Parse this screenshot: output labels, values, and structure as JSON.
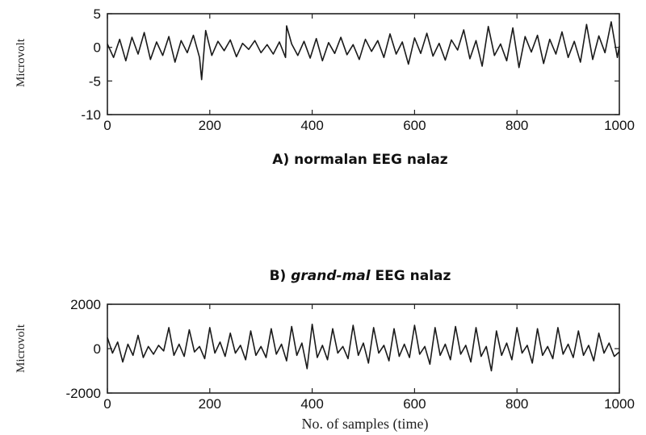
{
  "chart_data": [
    {
      "type": "line",
      "title": "",
      "caption": "A) normalan EEG nalaz",
      "xlabel": "",
      "ylabel": "Microvolt",
      "xlim": [
        0,
        1000
      ],
      "ylim": [
        -10,
        5
      ],
      "xticks": [
        0,
        200,
        400,
        600,
        800,
        1000
      ],
      "yticks": [
        5,
        0,
        -5,
        -10
      ],
      "grid": false,
      "series": [
        {
          "x": [
            0,
            12,
            24,
            36,
            48,
            60,
            72,
            84,
            96,
            108,
            120,
            132,
            144,
            156,
            168,
            180,
            184,
            192,
            204,
            216,
            228,
            240,
            252,
            264,
            276,
            288,
            300,
            312,
            324,
            336,
            348,
            350,
            360,
            372,
            384,
            396,
            408,
            420,
            432,
            444,
            456,
            468,
            480,
            492,
            504,
            516,
            528,
            540,
            552,
            564,
            576,
            588,
            600,
            612,
            624,
            636,
            648,
            660,
            672,
            684,
            696,
            708,
            720,
            732,
            744,
            756,
            768,
            780,
            792,
            804,
            816,
            828,
            840,
            852,
            864,
            876,
            888,
            900,
            912,
            924,
            936,
            948,
            960,
            972,
            984,
            996,
            1000
          ],
          "values": [
            0.5,
            -1.5,
            1.2,
            -2.0,
            1.5,
            -1.0,
            2.2,
            -1.8,
            0.8,
            -1.2,
            1.6,
            -2.2,
            1.0,
            -0.8,
            1.8,
            -1.5,
            -4.8,
            2.5,
            -1.2,
            0.9,
            -0.5,
            1.1,
            -1.4,
            0.6,
            -0.3,
            1.0,
            -0.8,
            0.4,
            -1.0,
            0.8,
            -1.5,
            3.2,
            0.5,
            -1.2,
            0.9,
            -1.6,
            1.3,
            -2.0,
            0.7,
            -0.9,
            1.5,
            -1.1,
            0.4,
            -1.8,
            1.2,
            -0.6,
            1.0,
            -1.5,
            2.0,
            -1.0,
            0.8,
            -2.5,
            1.4,
            -0.9,
            2.1,
            -1.3,
            0.6,
            -1.9,
            1.1,
            -0.4,
            2.6,
            -1.7,
            1.0,
            -2.8,
            3.1,
            -1.2,
            0.5,
            -2.0,
            2.9,
            -3.0,
            1.6,
            -0.7,
            1.8,
            -2.4,
            1.2,
            -1.0,
            2.3,
            -1.5,
            0.9,
            -2.2,
            3.4,
            -1.8,
            1.7,
            -0.8,
            3.8,
            -1.5,
            0.2
          ]
        }
      ]
    },
    {
      "type": "line",
      "title": "",
      "caption": {
        "prefix": "B) ",
        "italic": "grand-mal",
        "suffix": " EEG nalaz"
      },
      "xlabel": "No. of samples (time)",
      "ylabel": "Microvolt",
      "xlim": [
        0,
        1000
      ],
      "ylim": [
        -2000,
        2000
      ],
      "xticks": [
        0,
        200,
        400,
        600,
        800,
        1000
      ],
      "yticks": [
        2000,
        0,
        -2000
      ],
      "grid": false,
      "series": [
        {
          "x": [
            0,
            10,
            20,
            30,
            40,
            50,
            60,
            70,
            80,
            90,
            100,
            110,
            120,
            130,
            140,
            150,
            160,
            170,
            180,
            190,
            200,
            210,
            220,
            230,
            240,
            250,
            260,
            270,
            280,
            290,
            300,
            310,
            320,
            330,
            340,
            350,
            360,
            370,
            380,
            390,
            400,
            410,
            420,
            430,
            440,
            450,
            460,
            470,
            480,
            490,
            500,
            510,
            520,
            530,
            540,
            550,
            560,
            570,
            580,
            590,
            600,
            610,
            620,
            630,
            640,
            650,
            660,
            670,
            680,
            690,
            700,
            710,
            720,
            730,
            740,
            750,
            760,
            770,
            780,
            790,
            800,
            810,
            820,
            830,
            840,
            850,
            860,
            870,
            880,
            890,
            900,
            910,
            920,
            930,
            940,
            950,
            960,
            970,
            980,
            990,
            1000
          ],
          "values": [
            500,
            -200,
            300,
            -600,
            200,
            -300,
            600,
            -400,
            100,
            -250,
            150,
            -100,
            950,
            -300,
            200,
            -350,
            850,
            -150,
            100,
            -450,
            950,
            -200,
            300,
            -350,
            700,
            -200,
            150,
            -500,
            800,
            -300,
            100,
            -400,
            900,
            -250,
            200,
            -550,
            1000,
            -300,
            250,
            -900,
            1100,
            -400,
            150,
            -500,
            900,
            -200,
            100,
            -450,
            1050,
            -300,
            250,
            -650,
            950,
            -200,
            150,
            -550,
            900,
            -350,
            200,
            -400,
            1050,
            -250,
            100,
            -700,
            950,
            -300,
            200,
            -500,
            1000,
            -250,
            150,
            -600,
            950,
            -350,
            100,
            -1000,
            800,
            -300,
            250,
            -500,
            950,
            -200,
            150,
            -650,
            900,
            -300,
            100,
            -450,
            950,
            -250,
            200,
            -400,
            800,
            -300,
            150,
            -550,
            700,
            -200,
            250,
            -350,
            -150
          ]
        }
      ]
    }
  ]
}
